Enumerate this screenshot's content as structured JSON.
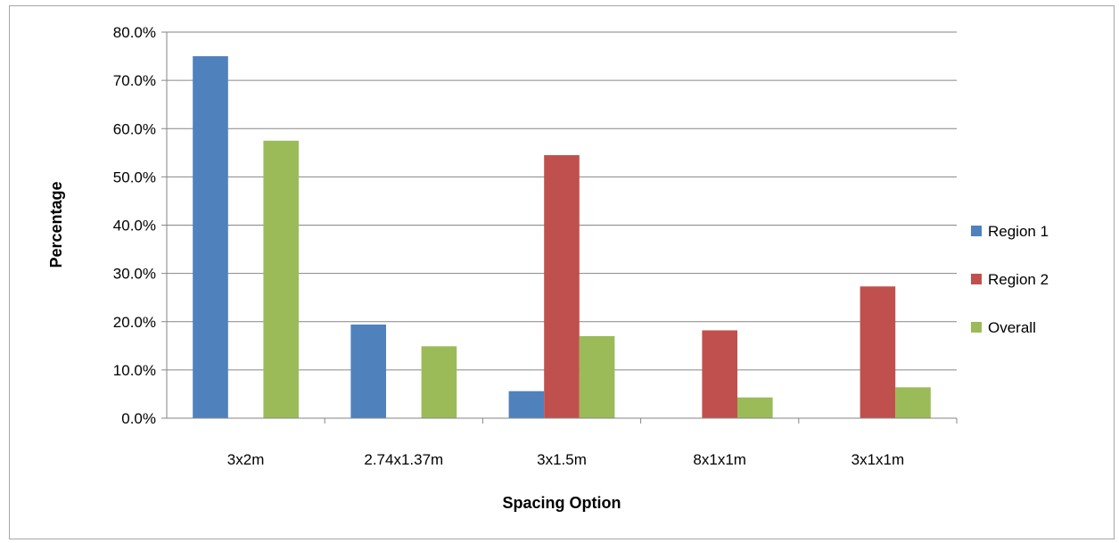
{
  "chart_data": {
    "type": "bar",
    "title": "",
    "xlabel": "Spacing Option",
    "ylabel": "Percentage",
    "categories": [
      "3x2m",
      "2.74x1.37m",
      "3x1.5m",
      "8x1x1m",
      "3x1x1m"
    ],
    "series": [
      {
        "name": "Region 1",
        "color": "#4f81bd",
        "values": [
          0.75,
          0.194,
          0.056,
          0,
          0
        ]
      },
      {
        "name": "Region 2",
        "color": "#c0504d",
        "values": [
          0,
          0,
          0.545,
          0.182,
          0.273
        ]
      },
      {
        "name": "Overall",
        "color": "#9bbb59",
        "values": [
          0.575,
          0.149,
          0.17,
          0.043,
          0.064
        ]
      }
    ],
    "ylim": [
      0,
      0.8
    ],
    "yticks": [
      0,
      0.1,
      0.2,
      0.3,
      0.4,
      0.5,
      0.6,
      0.7,
      0.8
    ],
    "ytick_labels": [
      "0.0%",
      "10.0%",
      "20.0%",
      "30.0%",
      "40.0%",
      "50.0%",
      "60.0%",
      "70.0%",
      "80.0%"
    ],
    "grid": "horizontal",
    "legend_position": "right",
    "gridline_color": "#868686"
  }
}
